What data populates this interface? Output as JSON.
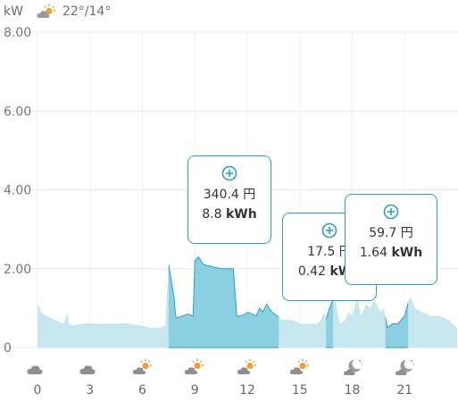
{
  "header": {
    "unit": "kW",
    "weather_icon": "partly-cloudy-sun-icon",
    "temperature": "22°/14°"
  },
  "colors": {
    "fill_light": "#c6e7f0",
    "fill_dark": "#8ccfe1",
    "stroke": "#2aa0c9",
    "grid": "#e8e8e8"
  },
  "chart_data": {
    "type": "area",
    "ylabel": "kW",
    "ylim": [
      0,
      8
    ],
    "yticks": [
      "8.00",
      "6.00",
      "4.00",
      "2.00",
      "0"
    ],
    "xlim": [
      0,
      24
    ],
    "xticks": [
      "0",
      "3",
      "6",
      "9",
      "12",
      "15",
      "18",
      "21"
    ],
    "grid": true,
    "series": [
      {
        "x": [
          0,
          0.3,
          1,
          1.5,
          1.7,
          1.8,
          2,
          2.5,
          3,
          3.5,
          4,
          5,
          6,
          6.5,
          7,
          7.3,
          7.5,
          7.8,
          7.9,
          8,
          8.3,
          8.6,
          8.9,
          9,
          9.2,
          9.5,
          10,
          10.5,
          11,
          11.2,
          11.4,
          11.6,
          11.9,
          12,
          12.5,
          12.7,
          12.9,
          13.1,
          13.4,
          13.7,
          14,
          14.5,
          14.9,
          15,
          15.5,
          16,
          16.2,
          16.4,
          16.5,
          16.7,
          17,
          17.3,
          17.6,
          17.8,
          18,
          18.3,
          18.5,
          18.8,
          19,
          19.3,
          19.6,
          19.8,
          20,
          20.3,
          20.6,
          21,
          21.3,
          21.6,
          22,
          22.5,
          23,
          23.5,
          24
        ],
        "y": [
          1.1,
          0.85,
          0.7,
          0.6,
          0.9,
          0.6,
          0.55,
          0.6,
          0.62,
          0.6,
          0.6,
          0.62,
          0.55,
          0.5,
          0.5,
          0.55,
          2.1,
          1.3,
          0.8,
          0.75,
          0.8,
          0.85,
          0.8,
          2.2,
          2.3,
          2.1,
          2.05,
          2.0,
          2.0,
          2.0,
          0.8,
          0.8,
          0.85,
          0.9,
          0.8,
          1.0,
          0.9,
          1.1,
          0.9,
          0.8,
          0.7,
          0.7,
          0.65,
          0.6,
          0.6,
          0.6,
          0.7,
          0.9,
          0.7,
          1.0,
          1.3,
          0.6,
          0.7,
          0.9,
          0.8,
          1.3,
          0.8,
          1.1,
          1.0,
          1.2,
          0.9,
          1.0,
          0.5,
          0.6,
          0.6,
          0.8,
          1.3,
          1.0,
          0.9,
          0.8,
          0.8,
          0.7,
          0.5
        ]
      }
    ],
    "highlight_ranges": [
      [
        7.5,
        13.8
      ],
      [
        16.5,
        16.9
      ],
      [
        19.9,
        21.2
      ]
    ],
    "annotations": [
      {
        "cost": "340.4 円",
        "energy": "8.8",
        "energy_unit": "kWh"
      },
      {
        "cost": "17.5 円",
        "energy": "0.42",
        "energy_unit": "kWh"
      },
      {
        "cost": "59.7 円",
        "energy": "1.64",
        "energy_unit": "kWh"
      }
    ],
    "weather_by_hour": [
      "cloudy-icon",
      "cloudy-icon",
      "partly-cloudy-sun-icon",
      "partly-cloudy-sun-icon",
      "partly-cloudy-sun-icon",
      "partly-cloudy-sun-icon",
      "moon-cloud-icon",
      "moon-cloud-icon"
    ]
  }
}
